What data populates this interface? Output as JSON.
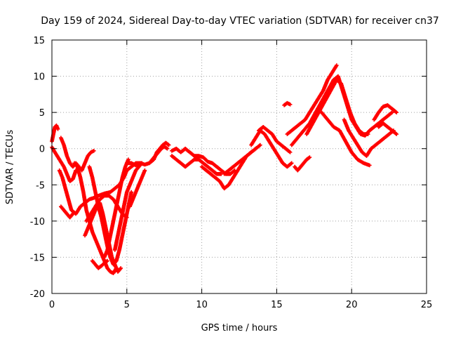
{
  "chart_data": {
    "type": "scatter",
    "title": "Day 159 of 2024, Sidereal Day-to-day VTEC variation (SDTVAR) for receiver cn37",
    "xlabel": "GPS time / hours",
    "ylabel": "SDTVAR / TECUs",
    "xlim": [
      0,
      25
    ],
    "ylim": [
      -20,
      15
    ],
    "xticks": [
      0,
      5,
      10,
      15,
      20,
      25
    ],
    "yticks": [
      -20,
      -15,
      -10,
      -5,
      0,
      5,
      10,
      15
    ],
    "grid": true,
    "marker": "plus",
    "color": "#ff0000",
    "series": [
      {
        "name": "s1",
        "x": [
          0.0,
          0.1,
          0.2,
          0.3,
          0.4
        ],
        "y": [
          1.0,
          2.0,
          3.0,
          3.2,
          2.7
        ]
      },
      {
        "name": "s2",
        "x": [
          0.0,
          0.2,
          0.5,
          0.8,
          1.0,
          1.2,
          1.4,
          1.6
        ],
        "y": [
          0.2,
          -0.5,
          -1.5,
          -2.5,
          -3.5,
          -4.5,
          -4.2,
          -3.0
        ]
      },
      {
        "name": "s3",
        "x": [
          0.6,
          0.8,
          1.0,
          1.2,
          1.4,
          1.6,
          1.8,
          2.0,
          2.2,
          2.4,
          2.6,
          2.8
        ],
        "y": [
          1.5,
          0.5,
          -1.0,
          -2.0,
          -2.5,
          -2.0,
          -2.5,
          -3.0,
          -2.0,
          -1.0,
          -0.5,
          -0.3
        ]
      },
      {
        "name": "s4",
        "x": [
          0.5,
          0.7,
          0.9,
          1.1,
          1.3,
          1.6,
          1.9,
          2.2,
          2.5,
          2.8,
          3.1,
          3.5,
          3.9,
          4.2,
          4.5,
          4.8,
          5.0,
          5.3,
          5.6,
          6.0
        ],
        "y": [
          -3.0,
          -4.0,
          -5.5,
          -7.0,
          -8.5,
          -9.0,
          -8.0,
          -7.5,
          -7.0,
          -6.8,
          -6.5,
          -6.2,
          -6.0,
          -5.5,
          -5.0,
          -4.0,
          -3.0,
          -2.5,
          -2.0,
          -2.0
        ]
      },
      {
        "name": "s5",
        "x": [
          0.6,
          0.8,
          1.0,
          1.2,
          1.4
        ],
        "y": [
          -8.0,
          -8.5,
          -9.0,
          -9.5,
          -9.0
        ]
      },
      {
        "name": "s6",
        "x": [
          1.5,
          1.7,
          1.9,
          2.1,
          2.3,
          2.5,
          2.7,
          2.9,
          3.1,
          3.3,
          3.5,
          3.7,
          3.9,
          4.1,
          4.3
        ],
        "y": [
          -2.0,
          -2.5,
          -4.0,
          -6.0,
          -8.5,
          -10.0,
          -11.5,
          -12.5,
          -13.5,
          -14.5,
          -15.5,
          -16.5,
          -17.0,
          -17.2,
          -16.5
        ]
      },
      {
        "name": "s7",
        "x": [
          2.2,
          2.4,
          2.6,
          2.8,
          3.0,
          3.2,
          3.4,
          3.6,
          3.8,
          4.0,
          4.2,
          4.4,
          4.6
        ],
        "y": [
          -12.0,
          -11.0,
          -10.0,
          -9.0,
          -8.0,
          -7.5,
          -9.0,
          -11.0,
          -13.0,
          -15.0,
          -16.0,
          -17.0,
          -16.5
        ]
      },
      {
        "name": "s8",
        "x": [
          2.5,
          2.7,
          2.9,
          3.1,
          3.3,
          3.5,
          3.7,
          3.9,
          4.1,
          4.3,
          4.5,
          4.7,
          4.9,
          5.1,
          5.3
        ],
        "y": [
          -2.5,
          -4.0,
          -6.0,
          -8.0,
          -9.5,
          -11.5,
          -13.5,
          -15.0,
          -16.0,
          -15.5,
          -14.0,
          -12.0,
          -10.0,
          -8.0,
          -6.0
        ]
      },
      {
        "name": "s9",
        "x": [
          2.7,
          2.9,
          3.1,
          3.3,
          3.5,
          3.7
        ],
        "y": [
          -15.5,
          -16.0,
          -16.5,
          -16.2,
          -15.8,
          -15.5
        ]
      },
      {
        "name": "s10",
        "x": [
          2.3,
          2.6,
          2.9,
          3.2,
          3.5,
          3.8,
          4.1,
          4.4,
          4.7,
          5.0
        ],
        "y": [
          -10.0,
          -9.0,
          -8.0,
          -7.0,
          -6.5,
          -6.5,
          -7.0,
          -8.0,
          -9.0,
          -9.5
        ]
      },
      {
        "name": "s11",
        "x": [
          3.5,
          3.7,
          3.9,
          4.1,
          4.3,
          4.5,
          4.7,
          4.9,
          5.1
        ],
        "y": [
          -15.0,
          -14.0,
          -12.0,
          -10.0,
          -8.0,
          -6.0,
          -4.0,
          -2.5,
          -1.5
        ]
      },
      {
        "name": "s12",
        "x": [
          4.2,
          4.4,
          4.6,
          4.8,
          5.0,
          5.2,
          5.4,
          5.6,
          5.8,
          6.0
        ],
        "y": [
          -14.0,
          -12.0,
          -10.0,
          -8.0,
          -6.0,
          -5.0,
          -4.0,
          -3.0,
          -2.5,
          -2.0
        ]
      },
      {
        "name": "s13",
        "x": [
          5.2,
          5.4,
          5.6,
          5.8,
          6.0,
          6.2
        ],
        "y": [
          -8.0,
          -7.0,
          -6.0,
          -5.0,
          -4.0,
          -3.0
        ]
      },
      {
        "name": "s14",
        "x": [
          5.0,
          5.3,
          5.6,
          5.9,
          6.2,
          6.5,
          6.8,
          7.0,
          7.2,
          7.4,
          7.6,
          7.8
        ],
        "y": [
          -2.0,
          -2.0,
          -2.3,
          -2.0,
          -2.2,
          -2.0,
          -1.5,
          -0.5,
          0.0,
          0.5,
          0.8,
          0.5
        ]
      },
      {
        "name": "s15",
        "x": [
          6.5,
          6.7,
          6.9,
          7.1,
          7.3,
          7.5,
          7.7
        ],
        "y": [
          -2.0,
          -1.5,
          -1.0,
          -0.5,
          0.0,
          0.3,
          0.0
        ]
      },
      {
        "name": "s16",
        "x": [
          8.0,
          8.3,
          8.6,
          8.9,
          9.2,
          9.5,
          9.8,
          10.1,
          10.4,
          10.7,
          11.0,
          11.3
        ],
        "y": [
          -1.0,
          -1.5,
          -2.0,
          -2.5,
          -2.0,
          -1.5,
          -1.5,
          -2.0,
          -2.5,
          -3.0,
          -3.5,
          -3.5
        ]
      },
      {
        "name": "s17",
        "x": [
          8.0,
          8.3,
          8.6,
          8.9,
          9.2,
          9.5,
          9.8,
          10.1,
          10.4,
          10.7,
          11.0,
          11.3,
          11.6,
          11.9,
          12.2
        ],
        "y": [
          -0.3,
          0.0,
          -0.5,
          0.0,
          -0.5,
          -1.0,
          -1.0,
          -1.2,
          -1.8,
          -2.0,
          -2.5,
          -3.0,
          -3.5,
          -3.5,
          -3.0
        ]
      },
      {
        "name": "s18",
        "x": [
          10.0,
          10.3,
          10.6,
          10.9,
          11.2,
          11.5,
          11.8,
          12.1,
          12.4,
          12.7,
          13.0,
          13.3,
          13.6,
          13.9
        ],
        "y": [
          -2.5,
          -3.0,
          -3.5,
          -4.0,
          -4.5,
          -5.5,
          -5.0,
          -4.0,
          -3.0,
          -2.0,
          -1.0,
          -0.5,
          0.0,
          0.5
        ]
      },
      {
        "name": "s19",
        "x": [
          11.5,
          11.8,
          12.1,
          12.4,
          12.7,
          13.0,
          13.3,
          13.6
        ],
        "y": [
          -3.5,
          -3.0,
          -2.5,
          -2.0,
          -1.5,
          -1.0,
          -0.5,
          0.0
        ]
      },
      {
        "name": "s20",
        "x": [
          13.3,
          13.6,
          13.9,
          14.2,
          14.5,
          14.8,
          15.1,
          15.4,
          15.7,
          16.0
        ],
        "y": [
          0.5,
          1.5,
          2.5,
          2.0,
          1.0,
          0.0,
          -1.0,
          -2.0,
          -2.5,
          -2.0
        ]
      },
      {
        "name": "s21",
        "x": [
          13.8,
          14.1,
          14.4,
          14.7,
          15.0,
          15.3,
          15.6,
          15.9
        ],
        "y": [
          2.5,
          3.0,
          2.5,
          2.0,
          1.0,
          0.5,
          0.0,
          -0.5
        ]
      },
      {
        "name": "s22",
        "x": [
          15.5,
          15.7,
          15.9
        ],
        "y": [
          6.0,
          6.3,
          6.1
        ]
      },
      {
        "name": "s23",
        "x": [
          16.2,
          16.4,
          16.6,
          16.8,
          17.0,
          17.2
        ],
        "y": [
          -2.5,
          -3.0,
          -2.5,
          -2.0,
          -1.5,
          -1.2
        ]
      },
      {
        "name": "s24",
        "x": [
          15.7,
          16.0,
          16.3,
          16.6,
          16.9,
          17.2,
          17.5,
          17.8,
          18.1,
          18.4,
          18.7,
          19.0
        ],
        "y": [
          2.0,
          2.5,
          3.0,
          3.5,
          4.0,
          5.0,
          6.0,
          7.0,
          8.0,
          9.5,
          10.5,
          11.5
        ]
      },
      {
        "name": "s25",
        "x": [
          16.0,
          16.4,
          16.8,
          17.2,
          17.6,
          18.0,
          18.4,
          18.8
        ],
        "y": [
          0.5,
          1.5,
          2.5,
          3.5,
          5.0,
          6.5,
          8.0,
          9.5
        ]
      },
      {
        "name": "s26",
        "x": [
          17.0,
          17.4,
          17.8,
          18.2,
          18.6,
          19.0,
          19.3,
          19.6,
          19.9,
          20.2,
          20.5,
          20.8,
          21.1
        ],
        "y": [
          2.0,
          3.5,
          5.0,
          6.5,
          8.0,
          9.5,
          9.0,
          7.0,
          5.0,
          3.5,
          2.5,
          2.0,
          2.0
        ]
      },
      {
        "name": "s27",
        "x": [
          18.5,
          18.8,
          19.1,
          19.4,
          19.7,
          20.0,
          20.3,
          20.6,
          20.9,
          21.2,
          21.5,
          21.8,
          22.1,
          22.4,
          22.7
        ],
        "y": [
          8.0,
          9.5,
          10.0,
          8.0,
          6.0,
          4.0,
          3.0,
          2.0,
          1.8,
          2.5,
          3.0,
          3.5,
          4.0,
          4.5,
          5.0
        ]
      },
      {
        "name": "s28",
        "x": [
          18.0,
          18.4,
          18.8,
          19.2,
          19.6,
          20.0,
          20.4,
          20.8,
          21.2
        ],
        "y": [
          5.0,
          4.0,
          3.0,
          2.5,
          1.0,
          -0.5,
          -1.5,
          -2.0,
          -2.3
        ]
      },
      {
        "name": "s29",
        "x": [
          19.5,
          19.8,
          20.1,
          20.4,
          20.7,
          21.0,
          21.3,
          21.6,
          21.9,
          22.2,
          22.5,
          22.8
        ],
        "y": [
          4.0,
          2.5,
          1.5,
          0.5,
          -0.5,
          -1.0,
          0.0,
          0.5,
          1.0,
          1.5,
          2.0,
          2.5
        ]
      },
      {
        "name": "s30",
        "x": [
          21.5,
          21.8,
          22.1,
          22.4,
          22.7,
          23.0
        ],
        "y": [
          4.0,
          5.0,
          5.8,
          6.0,
          5.5,
          5.0
        ]
      },
      {
        "name": "s31",
        "x": [
          21.8,
          22.1,
          22.4,
          22.7,
          23.0
        ],
        "y": [
          3.0,
          3.5,
          3.0,
          2.5,
          2.0
        ]
      }
    ]
  },
  "colors": {
    "marker": "#ff0000",
    "grid": "#a0a0a0",
    "axis": "#000000"
  }
}
